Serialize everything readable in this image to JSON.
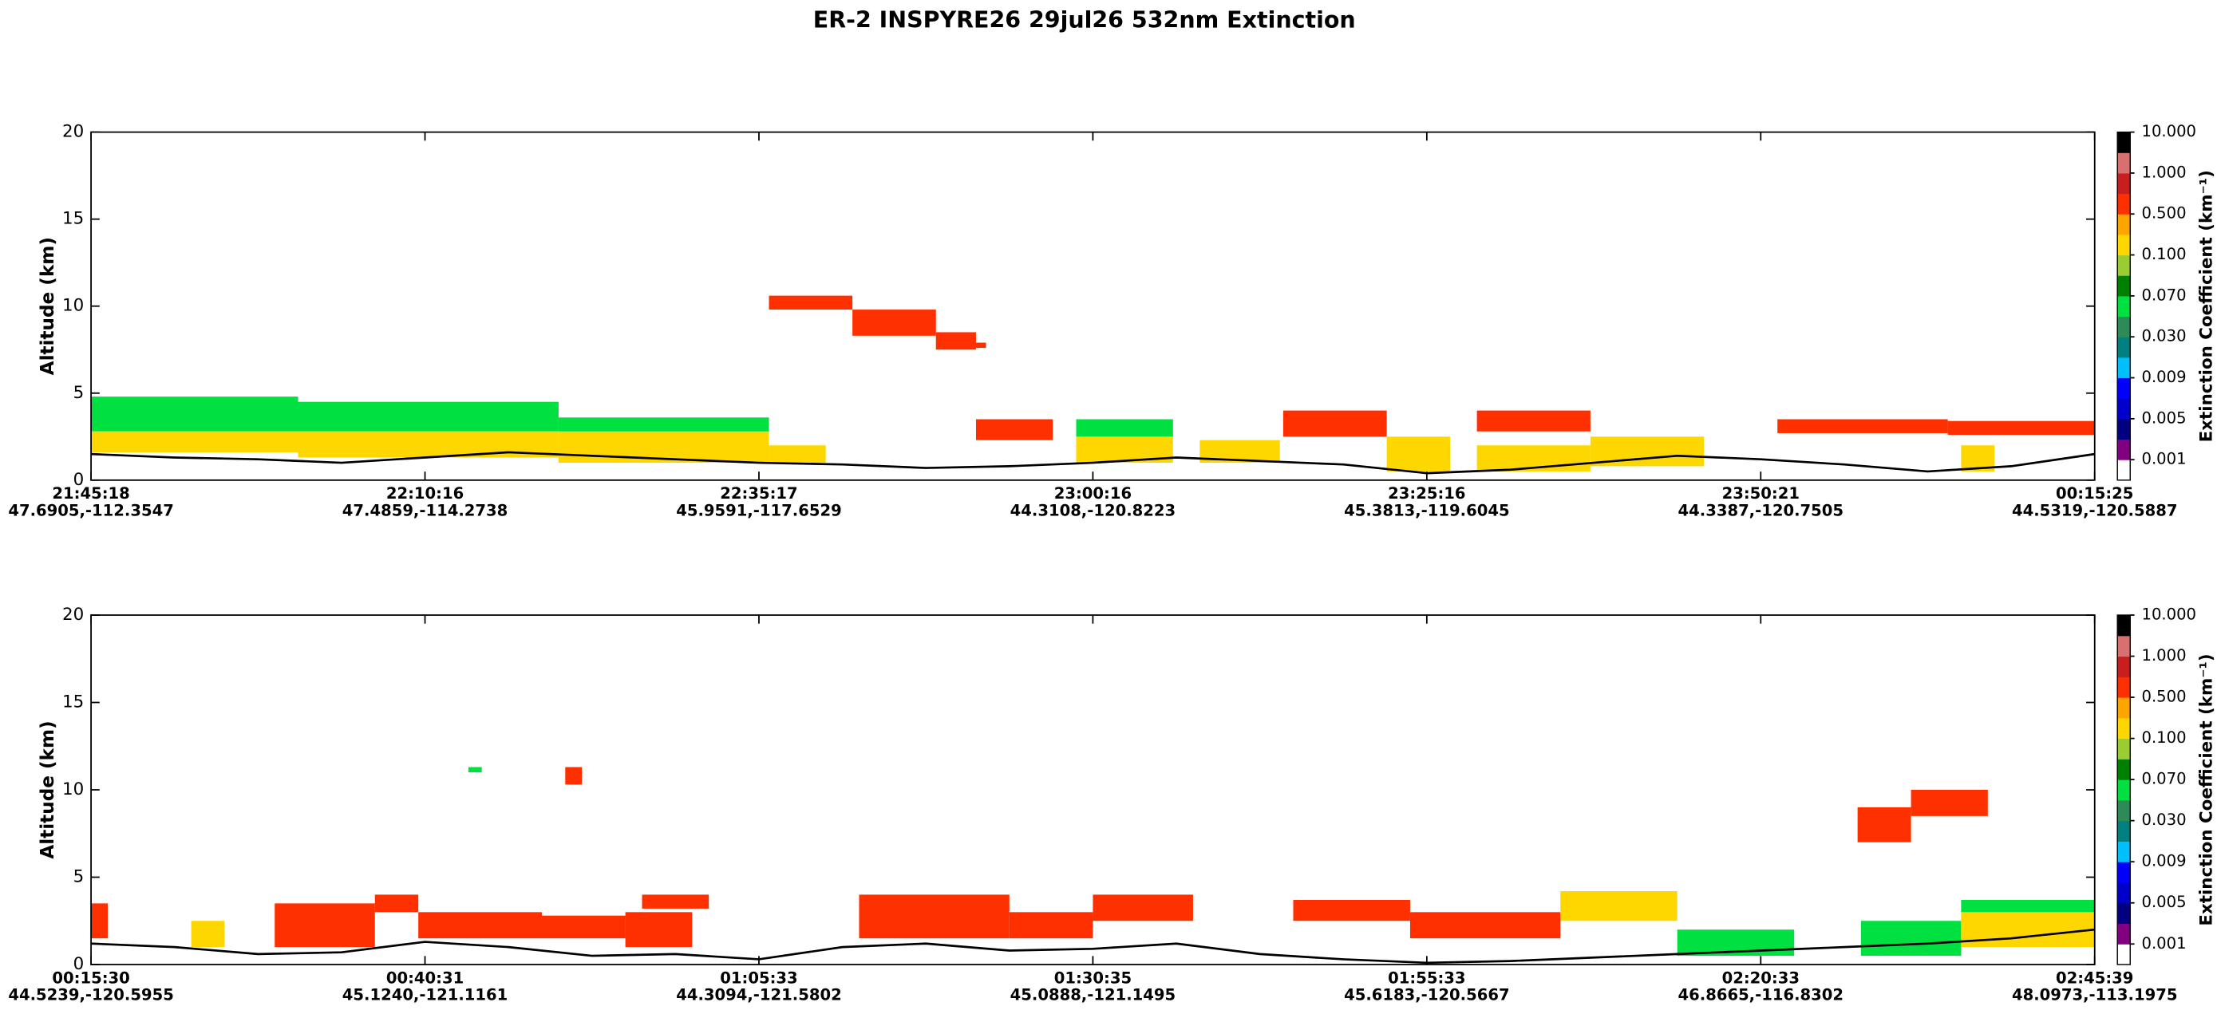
{
  "title": "ER-2  INSPYRE26  29jul26  532nm Extinction",
  "chart_data": [
    {
      "type": "heatmap",
      "ylabel": "Altitude (km)",
      "ylim": [
        0,
        20
      ],
      "yticks": [
        0,
        5,
        10,
        15,
        20
      ],
      "xlim": [
        0,
        6
      ],
      "xticks": [
        {
          "value": 0,
          "label": "21:45:18"
        },
        {
          "value": 1,
          "label": "22:10:16"
        },
        {
          "value": 2,
          "label": "22:35:17"
        },
        {
          "value": 3,
          "label": "23:00:16"
        },
        {
          "value": 4,
          "label": "23:25:16"
        },
        {
          "value": 5,
          "label": "23:50:21"
        },
        {
          "value": 6,
          "label": "00:15:25"
        }
      ],
      "xtick_locations": [
        "47.6905,-112.3547",
        "47.4859,-114.2738",
        "45.9591,-117.6529",
        "44.3108,-120.8223",
        "45.3813,-119.6045",
        "44.3387,-120.7505",
        "44.5319,-120.5887"
      ],
      "layers": [
        {
          "x": [
            0,
            0.62
          ],
          "altitude": [
            2.8,
            4.8
          ],
          "value": 0.05
        },
        {
          "x": [
            0,
            0.62
          ],
          "altitude": [
            1.6,
            2.8
          ],
          "value": 0.2
        },
        {
          "x": [
            0.62,
            1.4
          ],
          "altitude": [
            2.8,
            4.5
          ],
          "value": 0.05
        },
        {
          "x": [
            0.62,
            1.4
          ],
          "altitude": [
            1.3,
            2.8
          ],
          "value": 0.2
        },
        {
          "x": [
            1.4,
            2.03
          ],
          "altitude": [
            1.0,
            2.8
          ],
          "value": 0.2
        },
        {
          "x": [
            1.4,
            2.03
          ],
          "altitude": [
            2.8,
            3.6
          ],
          "value": 0.05
        },
        {
          "x": [
            2.03,
            2.2
          ],
          "altitude": [
            1.0,
            2.0
          ],
          "value": 0.2
        },
        {
          "x": [
            2.03,
            2.28
          ],
          "altitude": [
            9.8,
            10.6
          ],
          "value": 0.5
        },
        {
          "x": [
            2.28,
            2.53
          ],
          "altitude": [
            8.3,
            9.8
          ],
          "value": 0.5
        },
        {
          "x": [
            2.53,
            2.65
          ],
          "altitude": [
            7.5,
            8.5
          ],
          "value": 0.5
        },
        {
          "x": [
            2.65,
            2.68
          ],
          "altitude": [
            7.6,
            7.9
          ],
          "value": 0.7
        },
        {
          "x": [
            2.65,
            2.88
          ],
          "altitude": [
            2.3,
            3.5
          ],
          "value": 0.5
        },
        {
          "x": [
            2.95,
            3.24
          ],
          "altitude": [
            1.0,
            2.5
          ],
          "value": 0.1
        },
        {
          "x": [
            2.95,
            3.24
          ],
          "altitude": [
            2.5,
            3.5
          ],
          "value": 0.05
        },
        {
          "x": [
            3.32,
            3.56
          ],
          "altitude": [
            1.0,
            2.3
          ],
          "value": 0.1
        },
        {
          "x": [
            3.57,
            3.88
          ],
          "altitude": [
            2.5,
            4.0
          ],
          "value": 0.5
        },
        {
          "x": [
            3.88,
            4.07
          ],
          "altitude": [
            0.5,
            2.5
          ],
          "value": 0.2
        },
        {
          "x": [
            4.15,
            4.49
          ],
          "altitude": [
            0.5,
            2.0
          ],
          "value": 0.2
        },
        {
          "x": [
            4.15,
            4.49
          ],
          "altitude": [
            2.8,
            4.0
          ],
          "value": 0.5
        },
        {
          "x": [
            4.49,
            4.83
          ],
          "altitude": [
            0.8,
            2.5
          ],
          "value": 0.2
        },
        {
          "x": [
            5.05,
            5.56
          ],
          "altitude": [
            2.7,
            3.5
          ],
          "value": 0.5
        },
        {
          "x": [
            5.56,
            6.0
          ],
          "altitude": [
            2.6,
            3.4
          ],
          "value": 0.5
        },
        {
          "x": [
            5.6,
            5.7
          ],
          "altitude": [
            0.5,
            2.0
          ],
          "value": 0.2
        }
      ],
      "surface": {
        "color": "#000000",
        "x": [
          0,
          0.25,
          0.5,
          0.75,
          1,
          1.25,
          1.5,
          1.75,
          2,
          2.25,
          2.5,
          2.75,
          3,
          3.25,
          3.5,
          3.75,
          4,
          4.25,
          4.5,
          4.75,
          5,
          5.25,
          5.5,
          5.75,
          6
        ],
        "values": [
          1.5,
          1.3,
          1.2,
          1.0,
          1.3,
          1.6,
          1.4,
          1.2,
          1.0,
          0.9,
          0.7,
          0.8,
          1.0,
          1.3,
          1.1,
          0.9,
          0.4,
          0.6,
          1.0,
          1.4,
          1.2,
          0.9,
          0.5,
          0.8,
          1.5
        ]
      },
      "colorbar": {
        "label": "Extinction Coefficient (km⁻¹)",
        "ticks": [
          {
            "value": 0.001,
            "label": "0.001"
          },
          {
            "value": 0.005,
            "label": "0.005"
          },
          {
            "value": 0.009,
            "label": "0.009"
          },
          {
            "value": 0.03,
            "label": "0.030"
          },
          {
            "value": 0.07,
            "label": "0.070"
          },
          {
            "value": 0.1,
            "label": "0.100"
          },
          {
            "value": 0.5,
            "label": "0.500"
          },
          {
            "value": 1,
            "label": "1.000"
          },
          {
            "value": 10,
            "label": "10.000"
          }
        ],
        "colors": [
          "#ffffff",
          "#800080",
          "#000080",
          "#0000cd",
          "#0000ff",
          "#00bfff",
          "#008080",
          "#2e8b57",
          "#00e040",
          "#008000",
          "#9acd32",
          "#ffd700",
          "#ffa500",
          "#ff3000",
          "#c81e1e",
          "#d87070",
          "#000000"
        ]
      }
    },
    {
      "type": "heatmap",
      "ylabel": "Altitude (km)",
      "ylim": [
        0,
        20
      ],
      "yticks": [
        0,
        5,
        10,
        15,
        20
      ],
      "xlim": [
        0,
        6
      ],
      "xticks": [
        {
          "value": 0,
          "label": "00:15:30"
        },
        {
          "value": 1,
          "label": "00:40:31"
        },
        {
          "value": 2,
          "label": "01:05:33"
        },
        {
          "value": 3,
          "label": "01:30:35"
        },
        {
          "value": 4,
          "label": "01:55:33"
        },
        {
          "value": 5,
          "label": "02:20:33"
        },
        {
          "value": 6,
          "label": "02:45:39"
        }
      ],
      "xtick_locations": [
        "44.5239,-120.5955",
        "45.1240,-121.1161",
        "44.3094,-121.5802",
        "45.0888,-121.1495",
        "45.6183,-120.5667",
        "46.8665,-116.8302",
        "48.0973,-113.1975"
      ],
      "layers": [
        {
          "x": [
            0,
            0.05
          ],
          "altitude": [
            1.5,
            3.5
          ],
          "value": 0.5
        },
        {
          "x": [
            0.3,
            0.4
          ],
          "altitude": [
            1.0,
            2.5
          ],
          "value": 0.1
        },
        {
          "x": [
            0.55,
            0.85
          ],
          "altitude": [
            1.0,
            3.5
          ],
          "value": 0.5
        },
        {
          "x": [
            0.85,
            0.98
          ],
          "altitude": [
            3.0,
            4.0
          ],
          "value": 0.7
        },
        {
          "x": [
            0.98,
            1.35
          ],
          "altitude": [
            1.5,
            3.0
          ],
          "value": 0.5
        },
        {
          "x": [
            1.13,
            1.17
          ],
          "altitude": [
            11.0,
            11.3
          ],
          "value": 0.05
        },
        {
          "x": [
            1.42,
            1.47
          ],
          "altitude": [
            10.3,
            11.3
          ],
          "value": 0.5
        },
        {
          "x": [
            1.35,
            1.6
          ],
          "altitude": [
            1.5,
            2.8
          ],
          "value": 0.7
        },
        {
          "x": [
            1.6,
            1.8
          ],
          "altitude": [
            1.0,
            3.0
          ],
          "value": 0.5
        },
        {
          "x": [
            1.65,
            1.85
          ],
          "altitude": [
            3.2,
            4.0
          ],
          "value": 0.5
        },
        {
          "x": [
            2.3,
            2.75
          ],
          "altitude": [
            1.5,
            4.0
          ],
          "value": 0.7
        },
        {
          "x": [
            2.75,
            3.0
          ],
          "altitude": [
            1.5,
            3.0
          ],
          "value": 0.5
        },
        {
          "x": [
            3.0,
            3.3
          ],
          "altitude": [
            2.5,
            4.0
          ],
          "value": 0.5
        },
        {
          "x": [
            3.6,
            3.95
          ],
          "altitude": [
            2.5,
            3.7
          ],
          "value": 0.5
        },
        {
          "x": [
            3.95,
            4.4
          ],
          "altitude": [
            1.5,
            3.0
          ],
          "value": 0.5
        },
        {
          "x": [
            4.4,
            4.75
          ],
          "altitude": [
            2.5,
            4.2
          ],
          "value": 0.2
        },
        {
          "x": [
            4.75,
            5.1
          ],
          "altitude": [
            0.5,
            2.0
          ],
          "value": 0.05
        },
        {
          "x": [
            5.29,
            5.45
          ],
          "altitude": [
            7.0,
            9.0
          ],
          "value": 0.5
        },
        {
          "x": [
            5.45,
            5.68
          ],
          "altitude": [
            8.5,
            10.0
          ],
          "value": 0.5
        },
        {
          "x": [
            5.3,
            5.6
          ],
          "altitude": [
            0.5,
            2.5
          ],
          "value": 0.05
        },
        {
          "x": [
            5.6,
            6.0
          ],
          "altitude": [
            1.0,
            3.0
          ],
          "value": 0.1
        },
        {
          "x": [
            5.6,
            6.0
          ],
          "altitude": [
            3.0,
            3.7
          ],
          "value": 0.05
        }
      ],
      "surface": {
        "color": "#000000",
        "x": [
          0,
          0.25,
          0.5,
          0.75,
          1,
          1.25,
          1.5,
          1.75,
          2,
          2.25,
          2.5,
          2.75,
          3,
          3.25,
          3.5,
          3.75,
          4,
          4.25,
          4.5,
          4.75,
          5,
          5.25,
          5.5,
          5.75,
          6
        ],
        "values": [
          1.2,
          1.0,
          0.6,
          0.7,
          1.3,
          1.0,
          0.5,
          0.6,
          0.3,
          1.0,
          1.2,
          0.8,
          0.9,
          1.2,
          0.6,
          0.3,
          0.1,
          0.2,
          0.4,
          0.6,
          0.8,
          1.0,
          1.2,
          1.5,
          2.0
        ]
      },
      "colorbar": {
        "label": "Extinction Coefficient (km⁻¹)",
        "ticks": [
          {
            "value": 0.001,
            "label": "0.001"
          },
          {
            "value": 0.005,
            "label": "0.005"
          },
          {
            "value": 0.009,
            "label": "0.009"
          },
          {
            "value": 0.03,
            "label": "0.030"
          },
          {
            "value": 0.07,
            "label": "0.070"
          },
          {
            "value": 0.1,
            "label": "0.100"
          },
          {
            "value": 0.5,
            "label": "0.500"
          },
          {
            "value": 1,
            "label": "1.000"
          },
          {
            "value": 10,
            "label": "10.000"
          }
        ],
        "colors": [
          "#ffffff",
          "#800080",
          "#000080",
          "#0000cd",
          "#0000ff",
          "#00bfff",
          "#008080",
          "#2e8b57",
          "#00e040",
          "#008000",
          "#9acd32",
          "#ffd700",
          "#ffa500",
          "#ff3000",
          "#c81e1e",
          "#d87070",
          "#000000"
        ]
      }
    }
  ]
}
